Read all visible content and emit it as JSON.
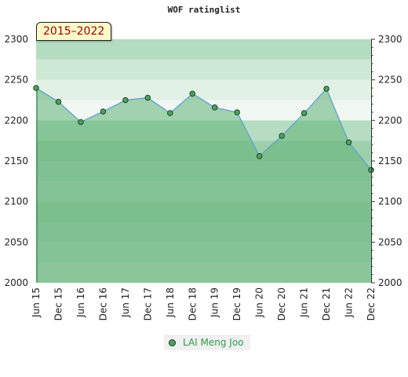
{
  "chart_data": {
    "type": "area",
    "title": "WOF ratinglist",
    "badge": "2015–2022",
    "ylim": [
      2000,
      2300
    ],
    "yticks": [
      2000,
      2050,
      2100,
      2150,
      2200,
      2250,
      2300
    ],
    "categories": [
      "Jun 15",
      "Dec 15",
      "Jun 16",
      "Dec 16",
      "Jun 17",
      "Dec 17",
      "Jun 18",
      "Dec 18",
      "Jun 19",
      "Dec 19",
      "Jun 20",
      "Dec 20",
      "Jun 21",
      "Dec 21",
      "Jun 22",
      "Dec 22"
    ],
    "series": [
      {
        "name": "LAI Meng Joo",
        "values": [
          2240,
          2223,
          2198,
          2211,
          2225,
          2228,
          2209,
          2233,
          2216,
          2210,
          2156,
          2181,
          2209,
          2239,
          2173,
          2139
        ]
      }
    ],
    "legend_position": "bottom",
    "colors": {
      "line": "#5b9bd5",
      "marker": "#4aa061",
      "fill": "#7fc28f"
    }
  }
}
